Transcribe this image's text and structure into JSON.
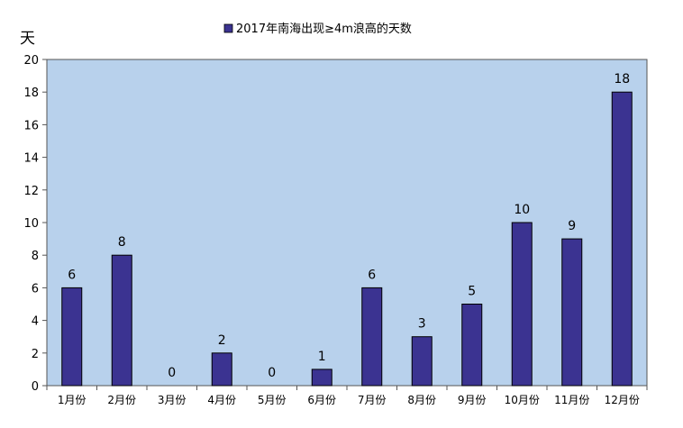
{
  "chart_data": {
    "type": "bar",
    "title": "",
    "xlabel": "",
    "ylabel": "天",
    "ylim": [
      0,
      20
    ],
    "yticks": [
      0,
      2,
      4,
      6,
      8,
      10,
      12,
      14,
      16,
      18,
      20
    ],
    "grid": false,
    "legend_position": "top-center",
    "categories": [
      "1月份",
      "2月份",
      "3月份",
      "4月份",
      "5月份",
      "6月份",
      "7月份",
      "8月份",
      "9月份",
      "10月份",
      "11月份",
      "12月份"
    ],
    "series": [
      {
        "name": "2017年南海出现≥4m浪高的天数",
        "values": [
          6,
          8,
          0,
          2,
          0,
          1,
          6,
          3,
          5,
          10,
          9,
          18
        ],
        "color": "#3b3391"
      }
    ],
    "plot_background": "#b8d1ec"
  }
}
